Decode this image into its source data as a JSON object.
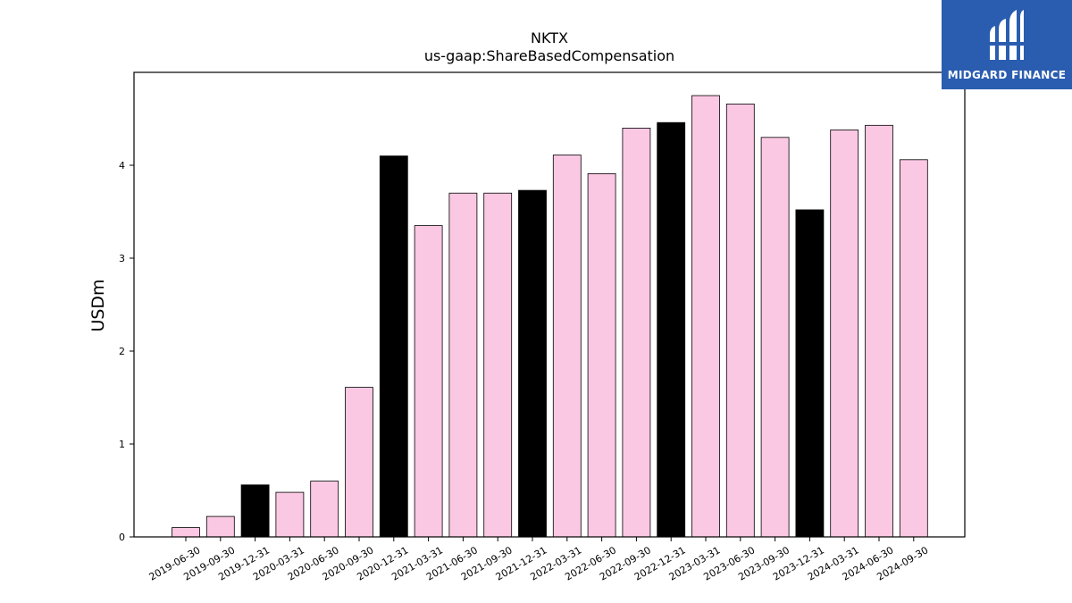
{
  "chart_data": {
    "type": "bar",
    "title": "NKTX",
    "subtitle": "us-gaap:ShareBasedCompensation",
    "xlabel": "",
    "ylabel": "USDm",
    "ylim": [
      0,
      5.0
    ],
    "yticks": [
      0,
      1,
      2,
      3,
      4
    ],
    "grid": false,
    "categories": [
      "2019-06-30",
      "2019-09-30",
      "2019-12-31",
      "2020-03-31",
      "2020-06-30",
      "2020-09-30",
      "2020-12-31",
      "2021-03-31",
      "2021-06-30",
      "2021-09-30",
      "2021-12-31",
      "2022-03-31",
      "2022-06-30",
      "2022-09-30",
      "2022-12-31",
      "2023-03-31",
      "2023-06-30",
      "2023-09-30",
      "2023-12-31",
      "2024-03-31",
      "2024-06-30",
      "2024-09-30"
    ],
    "values": [
      0.1,
      0.22,
      0.56,
      0.48,
      0.6,
      1.61,
      4.1,
      3.35,
      3.7,
      3.7,
      3.73,
      4.11,
      3.91,
      4.4,
      4.46,
      4.75,
      4.66,
      4.3,
      3.52,
      4.38,
      4.43,
      4.06
    ],
    "highlight_categories": [
      "2019-12-31",
      "2020-12-31",
      "2021-12-31",
      "2022-12-31",
      "2023-12-31"
    ],
    "colors": {
      "default": "#fbc8e3",
      "highlight": "#000000",
      "edge": "#000000"
    }
  },
  "logo": {
    "text": "MIDGARD FINANCE",
    "icon": "midgard-logo-icon",
    "background": "#2a5db0"
  }
}
